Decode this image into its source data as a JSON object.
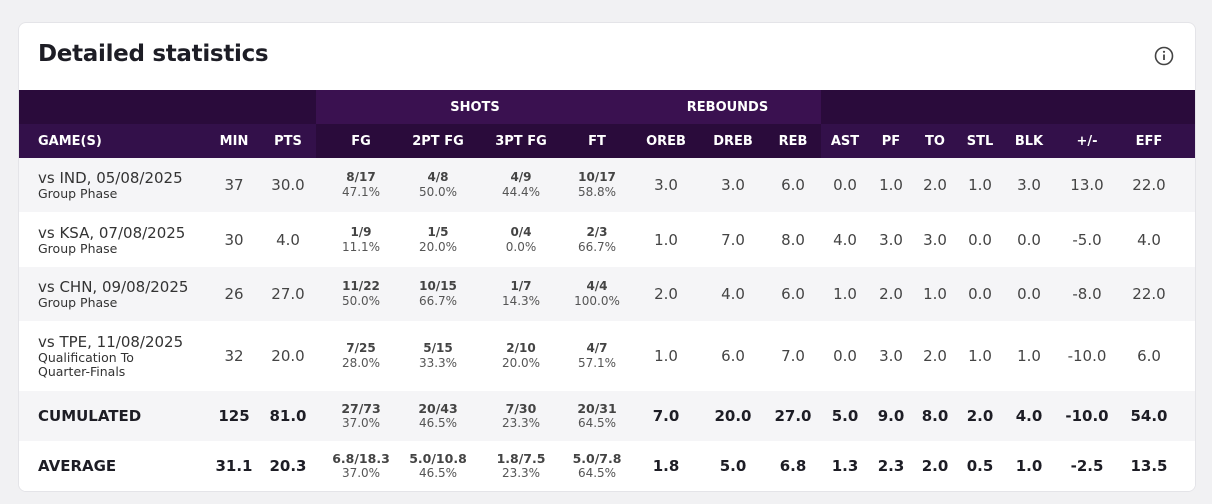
{
  "header": {
    "title": "Detailed statistics"
  },
  "table": {
    "groups": [
      "SHOTS",
      "REBOUNDS"
    ],
    "columns": [
      "GAME(S)",
      "MIN",
      "PTS",
      "FG",
      "2PT FG",
      "3PT FG",
      "FT",
      "OREB",
      "DREB",
      "REB",
      "AST",
      "PF",
      "TO",
      "STL",
      "BLK",
      "+/-",
      "EFF"
    ],
    "rows": [
      {
        "game": "vs IND, 05/08/2025",
        "phase": "Group Phase",
        "cells": [
          "37",
          "30.0",
          [
            "8/17",
            "47.1%"
          ],
          [
            "4/8",
            "50.0%"
          ],
          [
            "4/9",
            "44.4%"
          ],
          [
            "10/17",
            "58.8%"
          ],
          "3.0",
          "3.0",
          "6.0",
          "0.0",
          "1.0",
          "2.0",
          "1.0",
          "3.0",
          "13.0",
          "22.0"
        ]
      },
      {
        "game": "vs KSA, 07/08/2025",
        "phase": "Group Phase",
        "cells": [
          "30",
          "4.0",
          [
            "1/9",
            "11.1%"
          ],
          [
            "1/5",
            "20.0%"
          ],
          [
            "0/4",
            "0.0%"
          ],
          [
            "2/3",
            "66.7%"
          ],
          "1.0",
          "7.0",
          "8.0",
          "4.0",
          "3.0",
          "3.0",
          "0.0",
          "0.0",
          "-5.0",
          "4.0"
        ]
      },
      {
        "game": "vs CHN, 09/08/2025",
        "phase": "Group Phase",
        "cells": [
          "26",
          "27.0",
          [
            "11/22",
            "50.0%"
          ],
          [
            "10/15",
            "66.7%"
          ],
          [
            "1/7",
            "14.3%"
          ],
          [
            "4/4",
            "100.0%"
          ],
          "2.0",
          "4.0",
          "6.0",
          "1.0",
          "2.0",
          "1.0",
          "0.0",
          "0.0",
          "-8.0",
          "22.0"
        ]
      },
      {
        "game": "vs TPE, 11/08/2025",
        "phase": "Qualification To Quarter-Finals",
        "cells": [
          "32",
          "20.0",
          [
            "7/25",
            "28.0%"
          ],
          [
            "5/15",
            "33.3%"
          ],
          [
            "2/10",
            "20.0%"
          ],
          [
            "4/7",
            "57.1%"
          ],
          "1.0",
          "6.0",
          "7.0",
          "0.0",
          "3.0",
          "2.0",
          "1.0",
          "1.0",
          "-10.0",
          "6.0"
        ]
      }
    ],
    "totals": [
      {
        "label": "CUMULATED",
        "cells": [
          "125",
          "81.0",
          [
            "27/73",
            "37.0%"
          ],
          [
            "20/43",
            "46.5%"
          ],
          [
            "7/30",
            "23.3%"
          ],
          [
            "20/31",
            "64.5%"
          ],
          "7.0",
          "20.0",
          "27.0",
          "5.0",
          "9.0",
          "8.0",
          "2.0",
          "4.0",
          "-10.0",
          "54.0"
        ]
      },
      {
        "label": "AVERAGE",
        "cells": [
          "31.1",
          "20.3",
          [
            "6.8/18.3",
            "37.0%"
          ],
          [
            "5.0/10.8",
            "46.5%"
          ],
          [
            "1.8/7.5",
            "23.3%"
          ],
          [
            "5.0/7.8",
            "64.5%"
          ],
          "1.8",
          "5.0",
          "6.8",
          "1.3",
          "2.3",
          "2.0",
          "0.5",
          "1.0",
          "-2.5",
          "13.5"
        ]
      }
    ]
  }
}
